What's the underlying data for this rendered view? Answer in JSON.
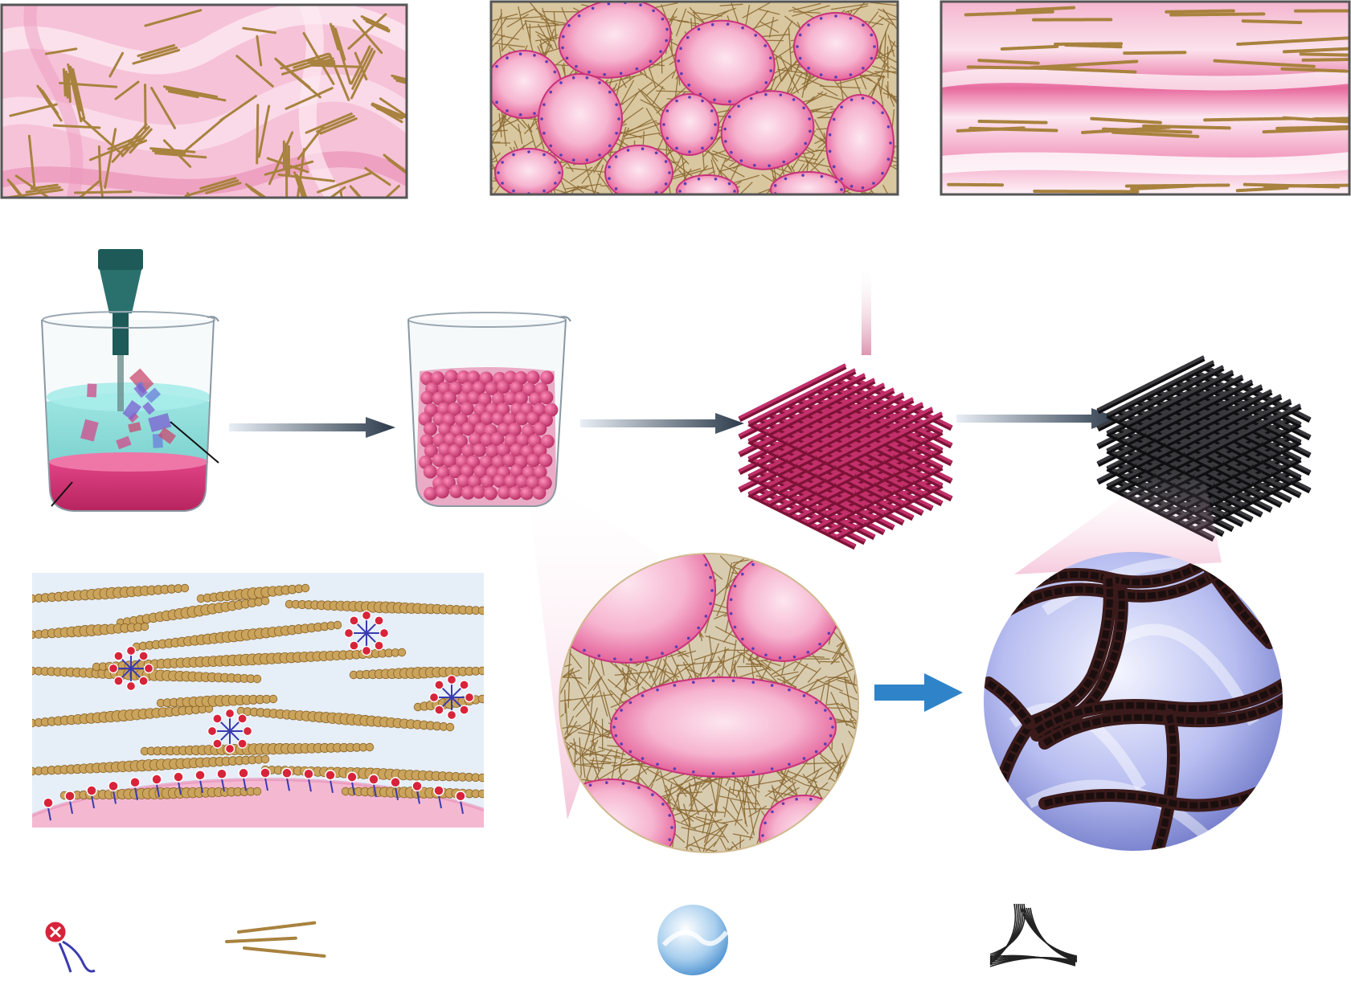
{
  "figure": {
    "kind": "schematic illustration",
    "text_labels": [],
    "colors": {
      "pink_matrix": "#f2a6c6",
      "pink_deep": "#e0508f",
      "pink_light": "#fde6f0",
      "fiber_gold": "#a8823e",
      "fiber_gold_light": "#caa35c",
      "crimson_scaffold": "#a8204f",
      "black_scaffold": "#1f1f22",
      "teal_nozzle": "#1d5a58",
      "teal_liquid": "#5fd0cc",
      "arrow_dark": "#2b3a4a",
      "arrow_blue": "#2f84c9",
      "lavender_void": "#9aa3de",
      "light_blue_panel": "#e6eef8",
      "surfactant_blue": "#3a3ab0",
      "charge_red": "#d8243a"
    }
  },
  "panels": [
    {
      "id": "top-left",
      "depicts": "dispersed-fibers-in-pink-medium"
    },
    {
      "id": "top-middle",
      "depicts": "droplets-surrounded-by-fiber-network"
    },
    {
      "id": "top-right",
      "depicts": "aligned-fibers-in-layered-medium"
    }
  ],
  "process_steps": [
    {
      "id": "step-1",
      "depicts": "beaker-with-homogenizer"
    },
    {
      "id": "step-2",
      "depicts": "beaker-with-emulsion-droplets"
    },
    {
      "id": "step-3",
      "depicts": "printed-lattice-scaffold"
    },
    {
      "id": "step-4",
      "depicts": "carbonized-black-scaffold"
    }
  ],
  "legend": [
    {
      "id": "legend-surfactant",
      "depicts": "surfactant-molecule"
    },
    {
      "id": "legend-fiber",
      "depicts": "nanofiber"
    },
    {
      "id": "legend-void",
      "depicts": "pore-void"
    },
    {
      "id": "legend-carbon-network",
      "depicts": "carbon-fiber-junction"
    }
  ]
}
